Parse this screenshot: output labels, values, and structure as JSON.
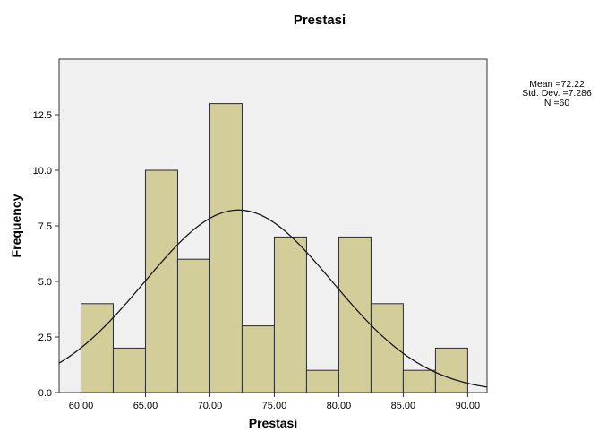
{
  "chart_data": {
    "type": "bar",
    "title": "Prestasi",
    "xlabel": "Prestasi",
    "ylabel": "Frequency",
    "bin_width": 2.5,
    "bins": [
      {
        "start": 60.0,
        "end": 62.5,
        "count": 4
      },
      {
        "start": 62.5,
        "end": 65.0,
        "count": 2
      },
      {
        "start": 65.0,
        "end": 67.5,
        "count": 10
      },
      {
        "start": 67.5,
        "end": 70.0,
        "count": 6
      },
      {
        "start": 70.0,
        "end": 72.5,
        "count": 13
      },
      {
        "start": 72.5,
        "end": 75.0,
        "count": 3
      },
      {
        "start": 75.0,
        "end": 77.5,
        "count": 7
      },
      {
        "start": 77.5,
        "end": 80.0,
        "count": 1
      },
      {
        "start": 80.0,
        "end": 82.5,
        "count": 7
      },
      {
        "start": 82.5,
        "end": 85.0,
        "count": 4
      },
      {
        "start": 85.0,
        "end": 87.5,
        "count": 1
      },
      {
        "start": 87.5,
        "end": 90.0,
        "count": 2
      }
    ],
    "xlim": [
      58.3,
      91.5
    ],
    "ylim": [
      0,
      15
    ],
    "x_ticks": [
      "60.00",
      "65.00",
      "70.00",
      "75.00",
      "80.00",
      "85.00",
      "90.00"
    ],
    "y_ticks": [
      "0.0",
      "2.5",
      "5.0",
      "7.5",
      "10.0",
      "12.5"
    ],
    "normal_curve": {
      "mean": 72.22,
      "std_dev": 7.286,
      "n": 60
    },
    "stats_lines": [
      "Mean =72.22",
      "Std. Dev. =7.286",
      "N =60"
    ],
    "colors": {
      "bar_fill": "#d3ce99",
      "bar_stroke": "#2b2b2b",
      "plot_background": "#f0f0f0",
      "curve": "#1a1a1a"
    },
    "grid": false,
    "legend": "none"
  }
}
